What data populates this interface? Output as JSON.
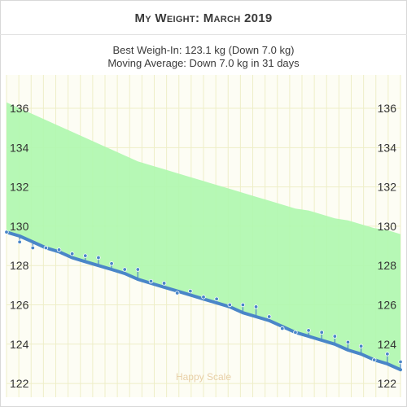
{
  "chart_title": "My Weight: March 2019",
  "subtitle_line1": "Best Weigh-In: 123.1 kg (Down 7.0 kg)",
  "subtitle_line2": "Moving Average: Down 7.0 kg in 31 days",
  "watermark": "Happy Scale",
  "colors": {
    "trend_line": "#4a86c8",
    "goal_band": "#aef7ae",
    "grid": "#eeeec8",
    "plot_background": "#fdfdf4",
    "weigh_in_marker": "#4a86c8"
  },
  "chart_data": {
    "type": "line",
    "title": "My Weight: March 2019",
    "xlabel": "",
    "ylabel": "",
    "ylim": [
      121.3,
      137.7
    ],
    "yticks": [
      122,
      124,
      126,
      128,
      130,
      132,
      134,
      136
    ],
    "ytick_labels": [
      "122",
      "124",
      "126",
      "128",
      "130",
      "132",
      "134",
      "136"
    ],
    "x": [
      1,
      2,
      3,
      4,
      5,
      6,
      7,
      8,
      9,
      10,
      11,
      12,
      13,
      14,
      15,
      16,
      17,
      18,
      19,
      20,
      21,
      22,
      23,
      24,
      25,
      26,
      27,
      28,
      29,
      30,
      31
    ],
    "grid": true,
    "series": [
      {
        "kind": "moving_average",
        "values": [
          129.7,
          129.5,
          129.2,
          128.9,
          128.7,
          128.4,
          128.2,
          128.0,
          127.8,
          127.6,
          127.3,
          127.1,
          126.9,
          126.7,
          126.5,
          126.3,
          126.1,
          125.9,
          125.6,
          125.4,
          125.2,
          124.9,
          124.6,
          124.4,
          124.2,
          124.0,
          123.7,
          123.5,
          123.2,
          123.0,
          122.7
        ]
      },
      {
        "kind": "weigh_ins",
        "values": [
          129.7,
          129.2,
          128.9,
          128.9,
          128.8,
          128.6,
          128.5,
          128.4,
          128.1,
          127.8,
          127.8,
          127.2,
          127.1,
          126.6,
          126.7,
          126.4,
          126.3,
          126.0,
          126.0,
          125.9,
          125.4,
          124.8,
          124.6,
          124.7,
          124.6,
          124.4,
          124.1,
          123.9,
          123.2,
          123.5,
          123.1
        ]
      },
      {
        "kind": "upper_band",
        "values": [
          136.3,
          136.0,
          135.7,
          135.4,
          135.1,
          134.8,
          134.5,
          134.2,
          133.9,
          133.6,
          133.3,
          133.1,
          132.9,
          132.7,
          132.5,
          132.3,
          132.1,
          131.9,
          131.7,
          131.5,
          131.3,
          131.1,
          130.9,
          130.8,
          130.6,
          130.4,
          130.3,
          130.1,
          129.9,
          129.8,
          129.6
        ]
      }
    ]
  }
}
